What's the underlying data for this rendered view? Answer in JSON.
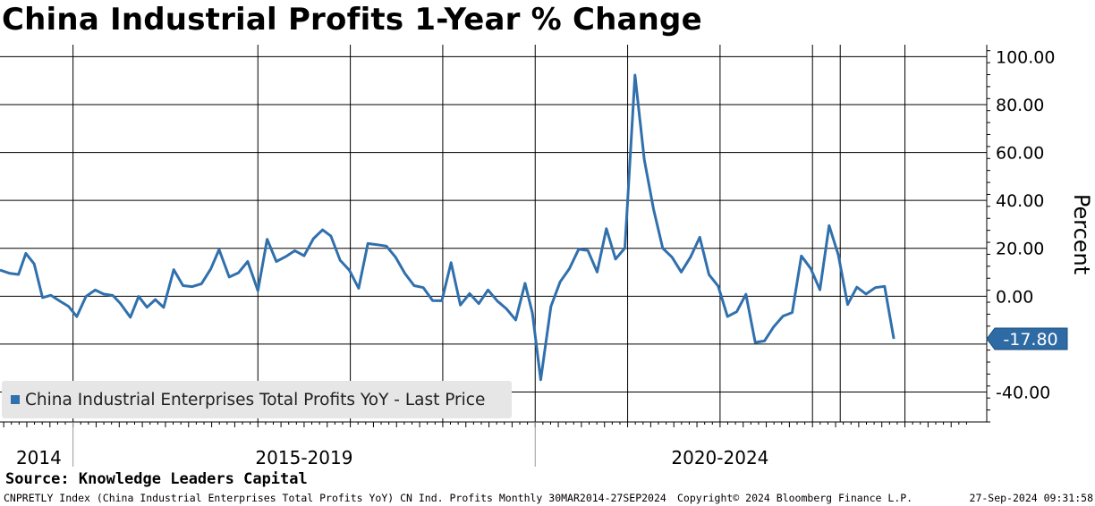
{
  "title": "China Industrial Profits 1-Year % Change",
  "source": "Source: Knowledge Leaders Capital",
  "footer": {
    "left": "CNPRETLY Index (China Industrial Enterprises Total Profits YoY) CN Ind. Profits  Monthly 30MAR2014-27SEP2024",
    "center": "Copyright© 2024 Bloomberg Finance L.P.",
    "right": "27-Sep-2024 09:31:58"
  },
  "colors": {
    "line": "#3070ad",
    "label_bg": "#2e6aa4",
    "grid": "#000000",
    "legend_bg": "#e6e6e6"
  },
  "chart_data": {
    "type": "line",
    "title": "China Industrial Profits 1-Year % Change",
    "ylabel": "Percent",
    "xlabel": "",
    "ylim": [
      -52.5,
      105
    ],
    "yticks": [
      100,
      80,
      60,
      40,
      20,
      0,
      -20,
      -40
    ],
    "ytick_labels": [
      "100.00",
      "80.00",
      "60.00",
      "40.00",
      "20.00",
      "0.00",
      "",
      "-40.00"
    ],
    "xrange": [
      2014.21,
      2024.74
    ],
    "year_gridlines": [
      2015,
      2017,
      2018,
      2019,
      2020,
      2021,
      2022,
      2023,
      2023.3,
      2024
    ],
    "period_labels": [
      {
        "text": "2014",
        "x": 2014.63
      },
      {
        "text": "2015-2019",
        "x": 2017.5
      },
      {
        "text": "2020-2024",
        "x": 2022.0
      }
    ],
    "period_dividers": [
      2015,
      2020
    ],
    "last_value": -17.8,
    "last_value_label": "-17.80",
    "legend": "China Industrial Enterprises Total Profits YoY - Last Price",
    "series": [
      {
        "name": "China Industrial Enterprises Total Profits YoY - Last Price",
        "points": [
          [
            2014.21,
            10.9
          ],
          [
            2014.31,
            9.6
          ],
          [
            2014.41,
            9.1
          ],
          [
            2014.49,
            17.9
          ],
          [
            2014.58,
            13.5
          ],
          [
            2014.67,
            -0.6
          ],
          [
            2014.76,
            0.4
          ],
          [
            2014.86,
            -2.1
          ],
          [
            2014.95,
            -4.2
          ],
          [
            2015.04,
            -8.5
          ],
          [
            2015.14,
            -0.1
          ],
          [
            2015.24,
            2.6
          ],
          [
            2015.33,
            0.9
          ],
          [
            2015.43,
            0.3
          ],
          [
            2015.51,
            -2.9
          ],
          [
            2015.62,
            -8.8
          ],
          [
            2015.71,
            -0.1
          ],
          [
            2015.8,
            -4.6
          ],
          [
            2015.89,
            -1.4
          ],
          [
            2015.98,
            -4.7
          ],
          [
            2016.09,
            11.1
          ],
          [
            2016.19,
            4.4
          ],
          [
            2016.29,
            4.0
          ],
          [
            2016.39,
            5.2
          ],
          [
            2016.49,
            11.4
          ],
          [
            2016.58,
            19.5
          ],
          [
            2016.69,
            8.0
          ],
          [
            2016.79,
            9.8
          ],
          [
            2016.89,
            14.5
          ],
          [
            2017.0,
            2.3
          ],
          [
            2017.1,
            23.8
          ],
          [
            2017.2,
            14.5
          ],
          [
            2017.3,
            16.5
          ],
          [
            2017.4,
            19.0
          ],
          [
            2017.5,
            16.9
          ],
          [
            2017.6,
            24.0
          ],
          [
            2017.7,
            27.7
          ],
          [
            2017.79,
            25.1
          ],
          [
            2017.89,
            15.0
          ],
          [
            2017.99,
            10.8
          ],
          [
            2018.09,
            3.3
          ],
          [
            2018.19,
            22.0
          ],
          [
            2018.29,
            21.5
          ],
          [
            2018.39,
            20.9
          ],
          [
            2018.49,
            16.3
          ],
          [
            2018.59,
            9.5
          ],
          [
            2018.69,
            4.4
          ],
          [
            2018.79,
            3.6
          ],
          [
            2018.89,
            -1.8
          ],
          [
            2018.99,
            -1.9
          ],
          [
            2019.09,
            14.0
          ],
          [
            2019.19,
            -3.7
          ],
          [
            2019.29,
            1.1
          ],
          [
            2019.39,
            -3.1
          ],
          [
            2019.49,
            2.6
          ],
          [
            2019.59,
            -2.0
          ],
          [
            2019.69,
            -5.3
          ],
          [
            2019.79,
            -9.9
          ],
          [
            2019.89,
            5.4
          ],
          [
            2019.97,
            -7.0
          ],
          [
            2020.06,
            -34.9
          ],
          [
            2020.17,
            -4.3
          ],
          [
            2020.27,
            6.0
          ],
          [
            2020.37,
            11.5
          ],
          [
            2020.47,
            19.6
          ],
          [
            2020.57,
            19.1
          ],
          [
            2020.67,
            10.1
          ],
          [
            2020.77,
            28.2
          ],
          [
            2020.87,
            15.5
          ],
          [
            2020.97,
            20.1
          ],
          [
            2021.08,
            92.3
          ],
          [
            2021.18,
            57.0
          ],
          [
            2021.28,
            36.4
          ],
          [
            2021.38,
            20.0
          ],
          [
            2021.48,
            16.3
          ],
          [
            2021.58,
            10.1
          ],
          [
            2021.68,
            16.3
          ],
          [
            2021.78,
            24.6
          ],
          [
            2021.88,
            9.0
          ],
          [
            2021.98,
            4.2
          ],
          [
            2022.08,
            -8.5
          ],
          [
            2022.18,
            -6.5
          ],
          [
            2022.28,
            0.8
          ],
          [
            2022.38,
            -19.3
          ],
          [
            2022.48,
            -18.7
          ],
          [
            2022.58,
            -12.8
          ],
          [
            2022.68,
            -8.3
          ],
          [
            2022.78,
            -6.8
          ],
          [
            2022.88,
            16.8
          ],
          [
            2022.98,
            11.6
          ],
          [
            2023.08,
            2.7
          ],
          [
            2023.18,
            29.5
          ],
          [
            2023.28,
            17.2
          ],
          [
            2023.38,
            -3.5
          ],
          [
            2023.48,
            3.8
          ],
          [
            2023.58,
            0.9
          ],
          [
            2023.68,
            3.6
          ],
          [
            2023.78,
            4.1
          ],
          [
            2023.88,
            -17.8
          ]
        ]
      }
    ]
  }
}
